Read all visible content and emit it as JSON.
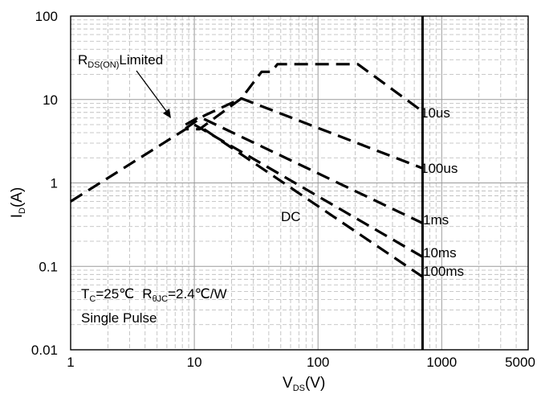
{
  "chart_data": {
    "type": "line",
    "title": "",
    "x_scale": "log",
    "y_scale": "log",
    "xlim": [
      1,
      5000
    ],
    "ylim": [
      0.01,
      100
    ],
    "x_ticks": [
      1,
      10,
      100,
      1000,
      5000
    ],
    "x_tick_labels": [
      "1",
      "10",
      "100",
      "1000",
      "5000"
    ],
    "y_ticks": [
      0.01,
      0.1,
      1,
      10,
      100
    ],
    "y_tick_labels": [
      "0.01",
      "0.1",
      "1",
      "10",
      "100"
    ],
    "xlabel": {
      "main": "V",
      "sub": "DS",
      "unit": "(V)"
    },
    "ylabel": {
      "main": "I",
      "sub": "D",
      "unit": "(A)"
    },
    "grid": true,
    "minor_grid_style": "dashed",
    "line_style": "dashed",
    "series_color": "#000000",
    "vertical_limit_line": {
      "x": 700
    },
    "series": [
      {
        "name": "",
        "points": [
          [
            1,
            0.6
          ],
          [
            8.5,
            4.4
          ],
          [
            11,
            4.4
          ],
          [
            24,
            10.3
          ],
          [
            35,
            21.5
          ],
          [
            42,
            21.5
          ],
          [
            47,
            26.5
          ],
          [
            210,
            26.5
          ],
          [
            700,
            7.2
          ]
        ]
      },
      {
        "points": [
          [
            8.5,
            4.5
          ],
          [
            12,
            6.4
          ],
          [
            24,
            10.3
          ],
          [
            700,
            1.5
          ]
        ]
      },
      {
        "points": [
          [
            8.5,
            5.0
          ],
          [
            11,
            6.2
          ],
          [
            700,
            0.33
          ]
        ]
      },
      {
        "points": [
          [
            10,
            5.0
          ],
          [
            700,
            0.13
          ]
        ]
      },
      {
        "points": [
          [
            12,
            4.4
          ],
          [
            700,
            0.075
          ]
        ]
      }
    ],
    "annotations": {
      "rds_label": {
        "main": "R",
        "sub": "DS(ON)",
        "rest": "Limited"
      },
      "curve_labels": [
        "10us",
        "100us",
        "1ms",
        "10ms",
        "100ms"
      ],
      "dc_label": "DC",
      "conditions": {
        "tc_main": "T",
        "tc_sub": "C",
        "tc_value": "=25℃",
        "r_main": "R",
        "r_sub": "θJC",
        "r_value": "=2.4℃/W",
        "pulse": "Single Pulse"
      }
    }
  }
}
